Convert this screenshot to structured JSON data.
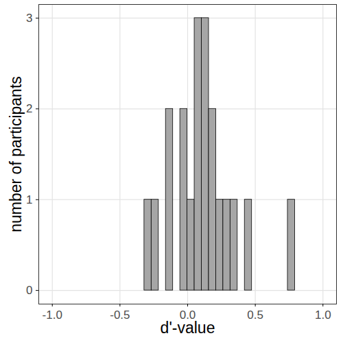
{
  "chart_data": {
    "type": "histogram",
    "x_label": "d'-value",
    "y_label": "number of participants",
    "bins": [
      -0.32,
      -0.267,
      -0.214,
      -0.161,
      -0.108,
      -0.055,
      -0.002,
      0.051,
      0.104,
      0.157,
      0.21,
      0.263,
      0.316,
      0.369,
      0.422,
      0.475,
      0.528,
      0.581,
      0.634,
      0.687,
      0.74,
      0.793
    ],
    "values": [
      1,
      1,
      0,
      2,
      0,
      2,
      1,
      3,
      3,
      2,
      1,
      1,
      1,
      0,
      1,
      0,
      0,
      0,
      0,
      0,
      1
    ],
    "color": "#a6a6a6",
    "xlim": [
      -1.1,
      1.1
    ],
    "xticks": [
      {
        "value": -1,
        "label": "-1.0"
      },
      {
        "value": -0.5,
        "label": "-0.5"
      },
      {
        "value": 0,
        "label": "0.0"
      },
      {
        "value": 0.5,
        "label": "0.5"
      },
      {
        "value": 1,
        "label": "1.0"
      }
    ],
    "ylim": [
      -0.15,
      3.15
    ],
    "yticks": [
      0,
      1,
      2,
      3
    ],
    "grid": true
  }
}
